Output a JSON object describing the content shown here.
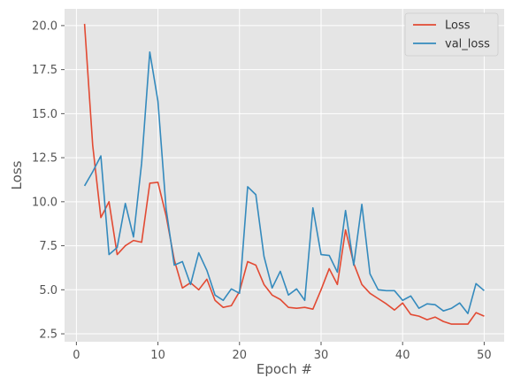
{
  "chart_data": {
    "type": "line",
    "xlabel": "Epoch #",
    "ylabel": "Loss",
    "xlim": [
      -1.45,
      52.45
    ],
    "ylim": [
      2.05,
      20.95
    ],
    "xticks": [
      0,
      10,
      20,
      30,
      40,
      50
    ],
    "yticks": [
      2.5,
      5.0,
      7.5,
      10.0,
      12.5,
      15.0,
      17.5,
      20.0
    ],
    "xtick_labels": [
      "0",
      "10",
      "20",
      "30",
      "40",
      "50"
    ],
    "ytick_labels": [
      "2.5",
      "5.0",
      "7.5",
      "10.0",
      "12.5",
      "15.0",
      "17.5",
      "20.0"
    ],
    "grid": true,
    "legend_position": "top-right",
    "x": [
      1,
      2,
      3,
      4,
      5,
      6,
      7,
      8,
      9,
      10,
      11,
      12,
      13,
      14,
      15,
      16,
      17,
      18,
      19,
      20,
      21,
      22,
      23,
      24,
      25,
      26,
      27,
      28,
      29,
      30,
      31,
      32,
      33,
      34,
      35,
      36,
      37,
      38,
      39,
      40,
      41,
      42,
      43,
      44,
      45,
      46,
      47,
      48,
      49,
      50
    ],
    "series": [
      {
        "name": "Loss",
        "color": "#E24A33",
        "values": [
          20.1,
          13.2,
          9.1,
          10.0,
          7.0,
          7.5,
          7.8,
          7.7,
          11.05,
          11.1,
          9.2,
          6.7,
          5.1,
          5.4,
          5.0,
          5.6,
          4.4,
          4.0,
          4.1,
          4.9,
          6.6,
          6.4,
          5.3,
          4.7,
          4.45,
          4.0,
          3.95,
          4.0,
          3.9,
          5.0,
          6.2,
          5.3,
          8.4,
          6.5,
          5.3,
          4.8,
          4.5,
          4.2,
          3.85,
          4.25,
          3.6,
          3.5,
          3.3,
          3.45,
          3.2,
          3.05,
          3.05,
          3.05,
          3.7,
          3.5
        ]
      },
      {
        "name": "val_loss",
        "color": "#348ABD",
        "values": [
          10.9,
          11.7,
          12.6,
          7.0,
          7.4,
          9.9,
          8.0,
          12.2,
          18.5,
          15.7,
          9.6,
          6.4,
          6.6,
          5.3,
          7.1,
          6.1,
          4.7,
          4.4,
          5.05,
          4.8,
          10.85,
          10.4,
          6.9,
          5.1,
          6.05,
          4.7,
          5.05,
          4.4,
          9.65,
          7.0,
          6.95,
          6.0,
          9.5,
          6.4,
          9.85,
          5.9,
          5.0,
          4.95,
          4.95,
          4.4,
          4.65,
          3.95,
          4.2,
          4.15,
          3.8,
          3.95,
          4.25,
          3.65,
          5.35,
          4.95
        ]
      }
    ]
  }
}
